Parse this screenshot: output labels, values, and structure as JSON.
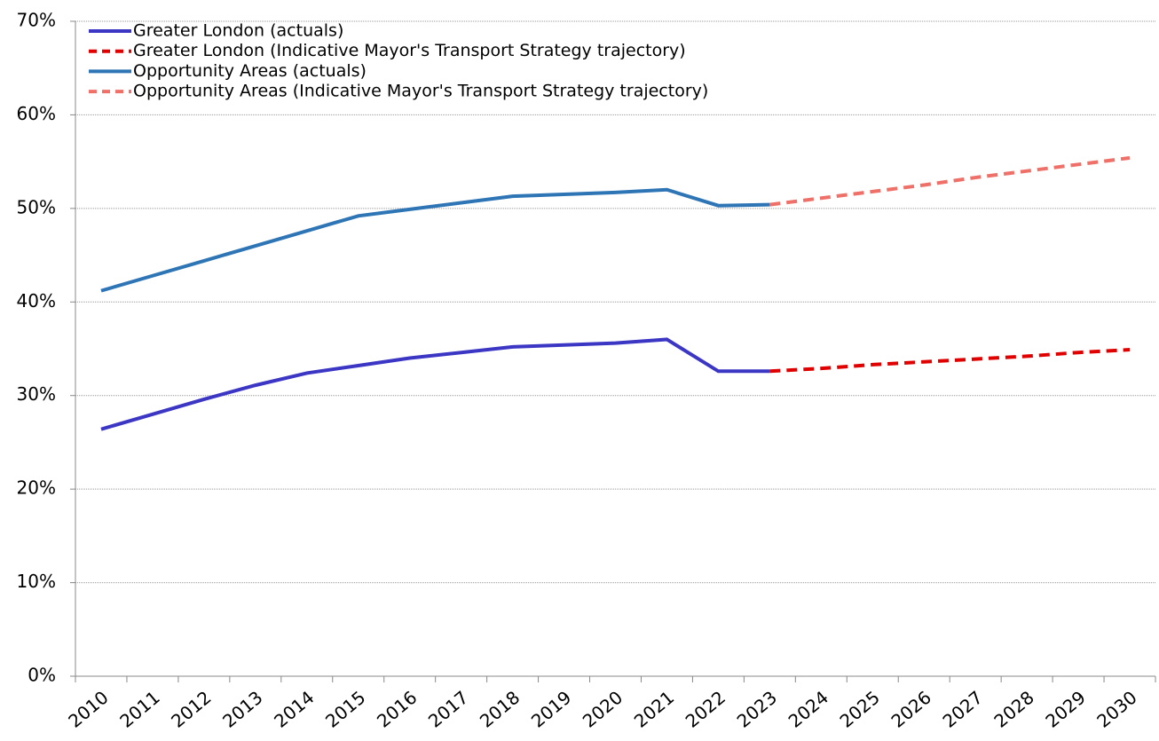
{
  "chart_data": {
    "type": "line",
    "x": [
      "2010",
      "2011",
      "2012",
      "2013",
      "2014",
      "2015",
      "2016",
      "2017",
      "2018",
      "2019",
      "2020",
      "2021",
      "2022",
      "2023",
      "2024",
      "2025",
      "2026",
      "2027",
      "2028",
      "2029",
      "2030"
    ],
    "series": [
      {
        "name": "Greater London (actuals)",
        "color": "#3b36c4",
        "dashed": false,
        "values": [
          26.4,
          28.0,
          29.6,
          31.1,
          32.4,
          33.2,
          34.0,
          34.6,
          35.2,
          35.4,
          35.6,
          36.0,
          32.6,
          32.6,
          null,
          null,
          null,
          null,
          null,
          null,
          null
        ]
      },
      {
        "name": "Greater London (Indicative Mayor's Transport Strategy trajectory)",
        "color": "#e00000",
        "dashed": true,
        "values": [
          null,
          null,
          null,
          null,
          null,
          null,
          null,
          null,
          null,
          null,
          null,
          null,
          null,
          32.6,
          32.9,
          33.3,
          33.6,
          33.9,
          34.2,
          34.6,
          34.9
        ]
      },
      {
        "name": "Opportunity Areas (actuals)",
        "color": "#2e75b6",
        "dashed": false,
        "values": [
          41.2,
          42.8,
          44.4,
          46.0,
          47.6,
          49.2,
          49.9,
          50.6,
          51.3,
          51.5,
          51.7,
          52.0,
          50.3,
          50.4,
          null,
          null,
          null,
          null,
          null,
          null,
          null
        ]
      },
      {
        "name": "Opportunity Areas (Indicative Mayor's Transport Strategy trajectory)",
        "color": "#ee7068",
        "dashed": true,
        "values": [
          null,
          null,
          null,
          null,
          null,
          null,
          null,
          null,
          null,
          null,
          null,
          null,
          null,
          50.4,
          51.1,
          51.8,
          52.5,
          53.3,
          54.0,
          54.7,
          55.4
        ]
      }
    ],
    "ylim": [
      0,
      70
    ],
    "yticks": [
      {
        "value": 0,
        "label": "0%"
      },
      {
        "value": 10,
        "label": "10%"
      },
      {
        "value": 20,
        "label": "20%"
      },
      {
        "value": 30,
        "label": "30%"
      },
      {
        "value": 40,
        "label": "40%"
      },
      {
        "value": 50,
        "label": "50%"
      },
      {
        "value": 60,
        "label": "60%"
      },
      {
        "value": 70,
        "label": "70%"
      }
    ],
    "grid": true,
    "legend": "upper left"
  }
}
